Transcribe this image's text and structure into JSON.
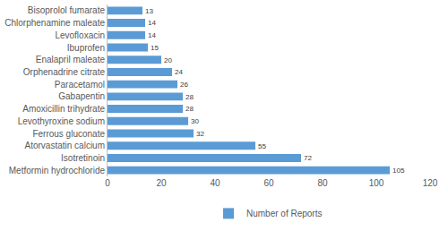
{
  "chart_data": {
    "type": "bar",
    "orientation": "horizontal",
    "categories": [
      "Bisoprolol fumarate",
      "Chlorphenamine maleate",
      "Levofloxacin",
      "Ibuprofen",
      "Enalapril maleate",
      "Orphenadrine citrate",
      "Paracetamol",
      "Gabapentin",
      "Amoxicillin trihydrate",
      "Levothyroxine sodium",
      "Ferrous gluconate",
      "Atorvastatin calcium",
      "Isotretinoin",
      "Metformin hydrochloride"
    ],
    "series": [
      {
        "name": "Number of Reports",
        "color": "#5b9bd5",
        "values": [
          13,
          14,
          14,
          15,
          20,
          24,
          26,
          28,
          28,
          30,
          32,
          55,
          72,
          105
        ]
      }
    ],
    "xlim": [
      0,
      120
    ],
    "xticks": [
      0,
      20,
      40,
      60,
      80,
      100,
      120
    ],
    "grid": false,
    "legend": "bottom",
    "data_labels": true
  }
}
